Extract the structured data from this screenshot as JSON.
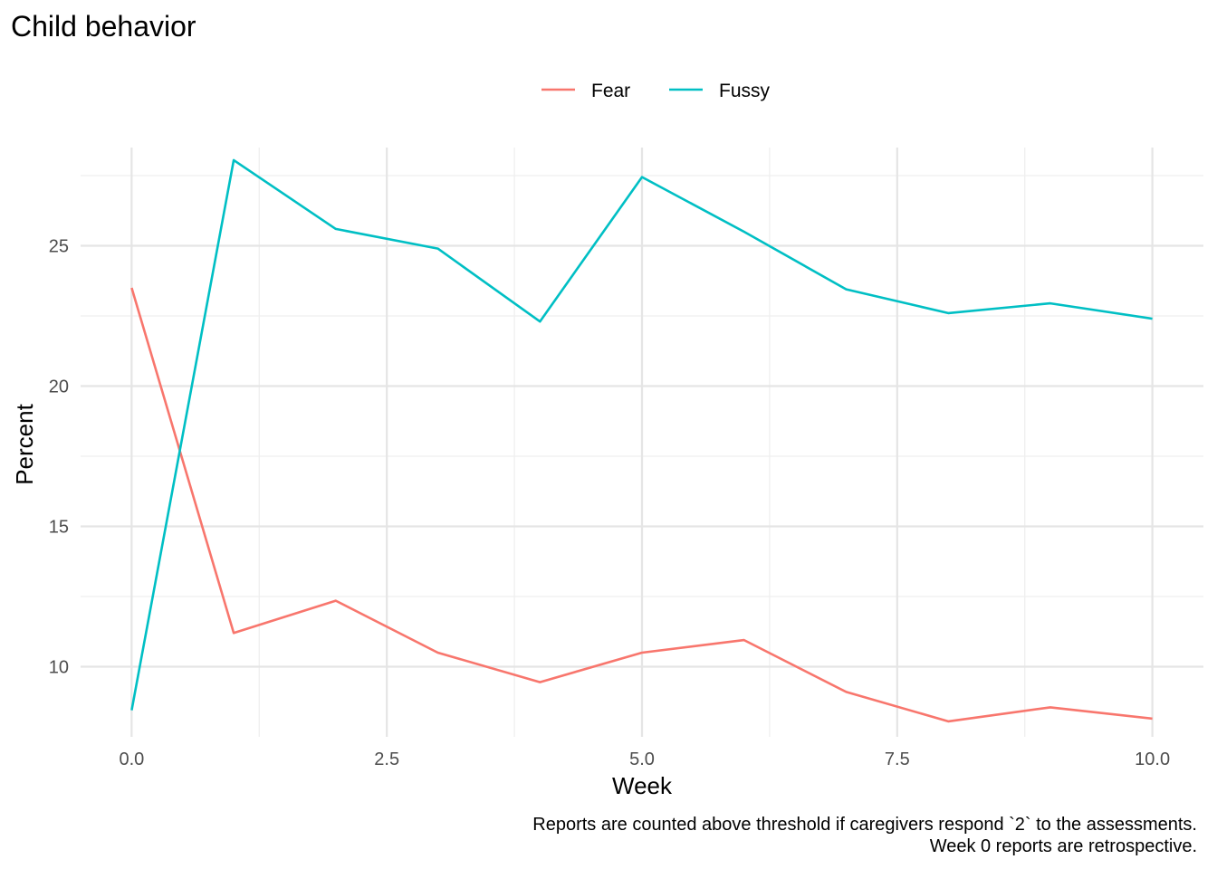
{
  "chart_data": {
    "type": "line",
    "title": "Child behavior",
    "xlabel": "Week",
    "ylabel": "Percent",
    "x": [
      0,
      1,
      2,
      3,
      4,
      5,
      6,
      7,
      8,
      9,
      10
    ],
    "xlim": [
      -0.5,
      10.5
    ],
    "ylim": [
      7.5,
      28.5
    ],
    "x_ticks": [
      0,
      2.5,
      5,
      7.5,
      10
    ],
    "x_tick_labels": [
      "0.0",
      "2.5",
      "5.0",
      "7.5",
      "10.0"
    ],
    "y_ticks": [
      10,
      15,
      20,
      25
    ],
    "y_tick_labels": [
      "10",
      "15",
      "20",
      "25"
    ],
    "grid": true,
    "legend_position": "top",
    "series": [
      {
        "name": "Fear",
        "color": "#F8766D",
        "values": [
          23.5,
          11.2,
          12.35,
          10.5,
          9.45,
          10.5,
          10.95,
          9.1,
          8.05,
          8.55,
          8.15
        ]
      },
      {
        "name": "Fussy",
        "color": "#00BFC4",
        "values": [
          8.45,
          28.05,
          25.6,
          24.9,
          22.3,
          27.45,
          25.5,
          23.45,
          22.6,
          22.95,
          22.4
        ]
      }
    ],
    "caption": [
      "Reports are counted above threshold if caregivers respond `2` to the assessments.",
      "Week 0 reports are retrospective."
    ]
  }
}
